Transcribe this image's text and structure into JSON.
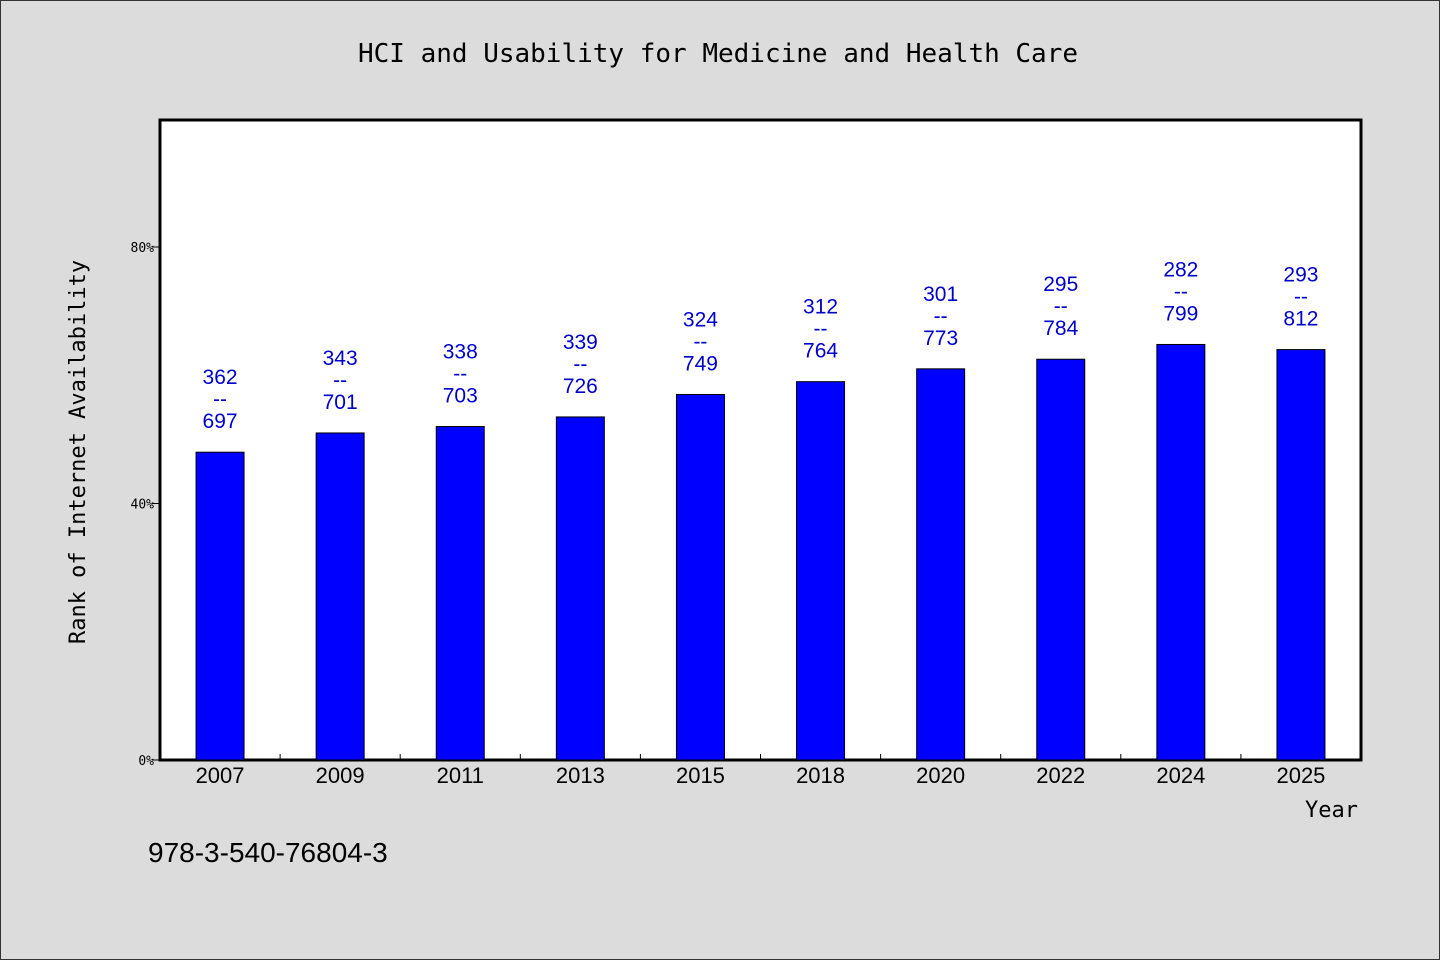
{
  "chart_data": {
    "type": "bar",
    "title": "HCI and Usability for Medicine and Health Care",
    "xlabel": "Year",
    "ylabel": "Rank of Internet Availability",
    "categories": [
      "2007",
      "2009",
      "2011",
      "2013",
      "2015",
      "2018",
      "2020",
      "2022",
      "2024",
      "2025"
    ],
    "values": [
      0.48,
      0.51,
      0.52,
      0.535,
      0.57,
      0.59,
      0.61,
      0.625,
      0.648,
      0.64
    ],
    "data_labels": [
      {
        "top": "362",
        "sep": "--",
        "bottom": "697"
      },
      {
        "top": "343",
        "sep": "--",
        "bottom": "701"
      },
      {
        "top": "338",
        "sep": "--",
        "bottom": "703"
      },
      {
        "top": "339",
        "sep": "--",
        "bottom": "726"
      },
      {
        "top": "324",
        "sep": "--",
        "bottom": "749"
      },
      {
        "top": "312",
        "sep": "--",
        "bottom": "764"
      },
      {
        "top": "301",
        "sep": "--",
        "bottom": "773"
      },
      {
        "top": "295",
        "sep": "--",
        "bottom": "784"
      },
      {
        "top": "282",
        "sep": "--",
        "bottom": "799"
      },
      {
        "top": "293",
        "sep": "--",
        "bottom": "812"
      }
    ],
    "ylim": [
      0,
      1
    ],
    "yticks": [
      {
        "value": 0,
        "label": "0%"
      },
      {
        "value": 0.4,
        "label": "40%"
      },
      {
        "value": 0.8,
        "label": "80%"
      }
    ],
    "grid": false,
    "bar_color": "#0000ff",
    "label_color": "#0000cc"
  },
  "footer_text": "978-3-540-76804-3"
}
